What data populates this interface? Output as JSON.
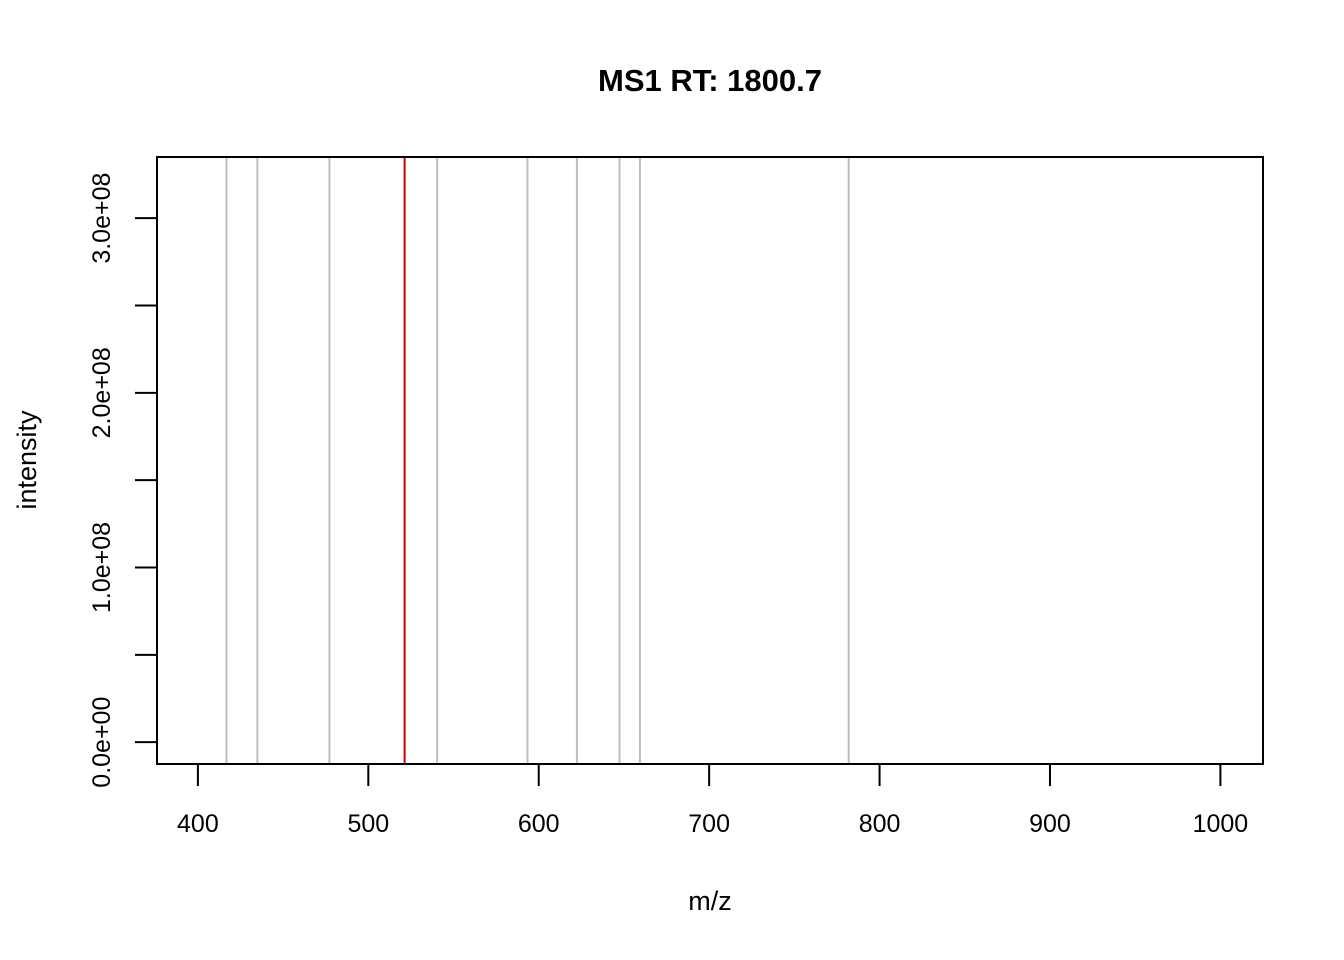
{
  "chart_data": {
    "type": "bar",
    "title": "MS1 RT: 1800.7",
    "xlabel": "m/z",
    "ylabel": "intensity",
    "xlim": [
      376,
      1025
    ],
    "ylim": [
      -12500000,
      335000000
    ],
    "x_ticks": [
      400,
      500,
      600,
      700,
      800,
      900,
      1000
    ],
    "x_tick_labels": [
      "400",
      "500",
      "600",
      "700",
      "800",
      "900",
      "1000"
    ],
    "y_ticks": [
      0,
      50000000,
      100000000,
      150000000,
      200000000,
      250000000,
      300000000
    ],
    "y_tick_labels": [
      "0.0e+00",
      "",
      "1.0e+08",
      "",
      "2.0e+08",
      "",
      "3.0e+08"
    ],
    "grid": false,
    "peaks": [
      {
        "mz": 416.8,
        "color": "#bebebe"
      },
      {
        "mz": 434.9,
        "color": "#bebebe"
      },
      {
        "mz": 477.2,
        "color": "#bebebe"
      },
      {
        "mz": 521.3,
        "color": "#cc0000"
      },
      {
        "mz": 540.4,
        "color": "#bebebe"
      },
      {
        "mz": 593.4,
        "color": "#bebebe"
      },
      {
        "mz": 622.4,
        "color": "#bebebe"
      },
      {
        "mz": 647.4,
        "color": "#bebebe"
      },
      {
        "mz": 659.4,
        "color": "#bebebe"
      },
      {
        "mz": 781.9,
        "color": "#bebebe"
      }
    ]
  }
}
